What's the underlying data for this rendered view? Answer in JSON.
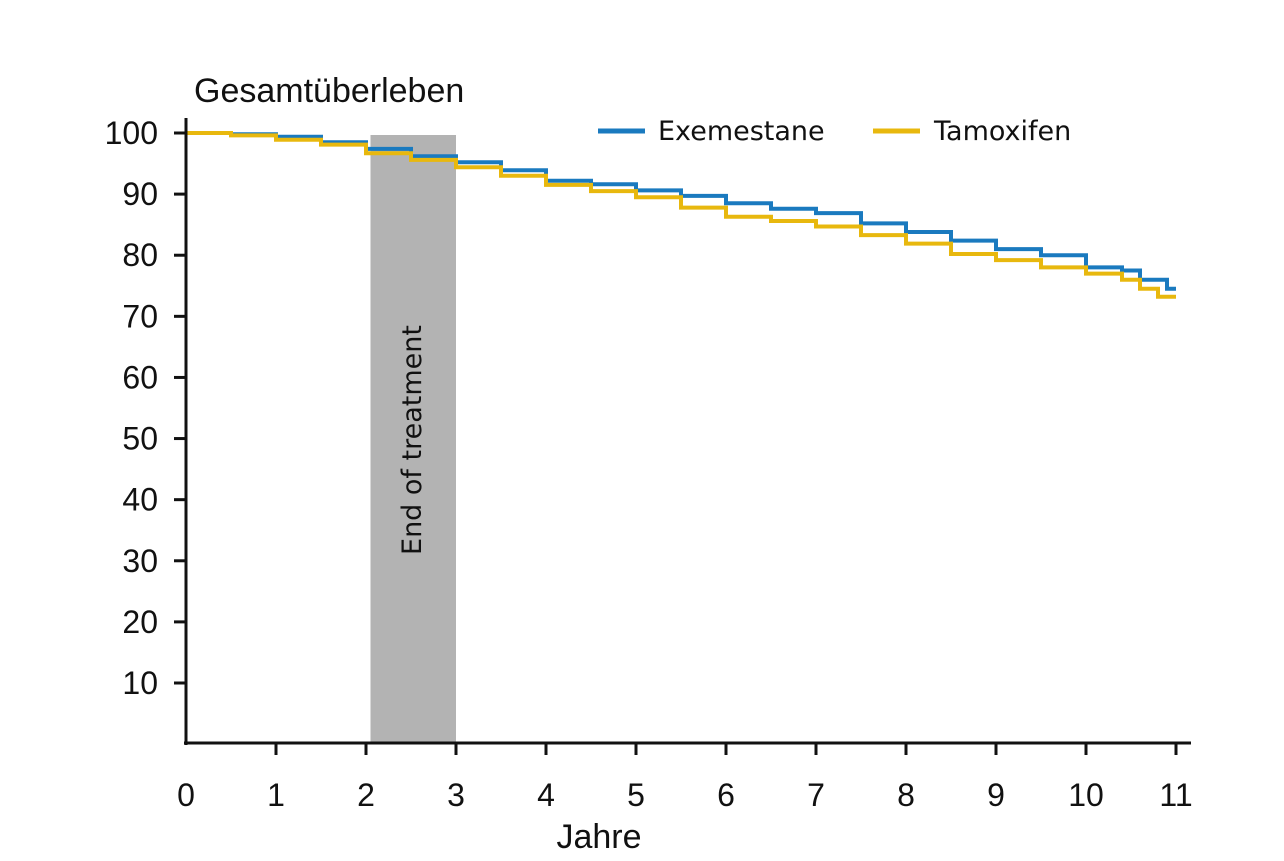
{
  "chart_data": {
    "type": "line",
    "title": "",
    "ylabel": "Gesamtüberleben",
    "xlabel": "Jahre",
    "xlim": [
      0,
      11
    ],
    "ylim": [
      0,
      100
    ],
    "x_ticks": [
      0,
      1,
      2,
      3,
      4,
      5,
      6,
      7,
      8,
      9,
      10,
      11
    ],
    "y_ticks": [
      10,
      20,
      30,
      40,
      50,
      60,
      70,
      80,
      90,
      100
    ],
    "grid": false,
    "legend_position": "top-right",
    "annotation": {
      "label": "End of treatment",
      "x_start": 2.05,
      "x_end": 3.0,
      "color": "#b3b3b3"
    },
    "series": [
      {
        "name": "Exemestane",
        "color": "#1a7abf",
        "x": [
          0,
          0.5,
          1.0,
          1.5,
          2.0,
          2.5,
          3.0,
          3.5,
          4.0,
          4.5,
          5.0,
          5.5,
          6.0,
          6.5,
          7.0,
          7.5,
          8.0,
          8.5,
          9.0,
          9.5,
          10.0,
          10.4,
          10.6,
          10.8,
          10.9,
          11.0
        ],
        "values": [
          100,
          99.8,
          99.4,
          98.5,
          97.4,
          96.2,
          95.2,
          93.9,
          92.2,
          91.6,
          90.6,
          89.7,
          88.5,
          87.6,
          86.9,
          85.2,
          83.8,
          82.4,
          81.0,
          80.0,
          78.0,
          77.5,
          76.0,
          76.0,
          74.5,
          74.5
        ]
      },
      {
        "name": "Tamoxifen",
        "color": "#e8b80e",
        "x": [
          0,
          0.5,
          1.0,
          1.5,
          2.0,
          2.5,
          3.0,
          3.5,
          4.0,
          4.5,
          5.0,
          5.5,
          6.0,
          6.5,
          7.0,
          7.5,
          8.0,
          8.5,
          9.0,
          9.5,
          10.0,
          10.4,
          10.6,
          10.8,
          10.9,
          11.0
        ],
        "values": [
          100,
          99.6,
          98.9,
          98.1,
          96.7,
          95.6,
          94.4,
          93.0,
          91.5,
          90.5,
          89.5,
          87.8,
          86.3,
          85.6,
          84.7,
          83.3,
          81.9,
          80.2,
          79.2,
          78.0,
          77.0,
          76.0,
          74.5,
          73.2,
          73.2,
          73.2
        ]
      }
    ]
  }
}
